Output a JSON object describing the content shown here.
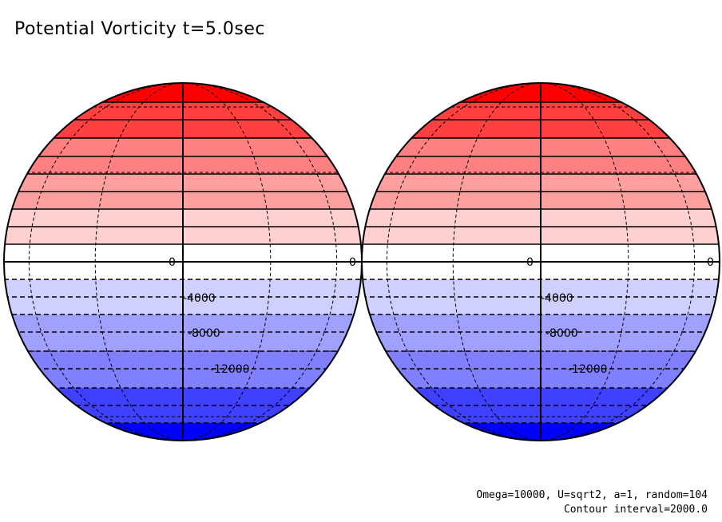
{
  "title": "Potential Vorticity t=5.0sec",
  "chart_data": {
    "type": "contour",
    "projection": "orthographic, two hemispheres side by side",
    "contour_interval": 2000,
    "color_bands": [
      "#ff0000",
      "#ff4040",
      "#ff8080",
      "#ffa0a0",
      "#ffd0d0",
      "#ffffff",
      "#ffffff",
      "#d0d0ff",
      "#a0a0ff",
      "#8080ff",
      "#4040ff",
      "#0000ff"
    ],
    "contour_labels": [
      "0",
      "0",
      "-4000",
      "-8000",
      "-12000"
    ],
    "negative_contours_style": "dashed"
  },
  "footer": {
    "params": "Omega=10000, U=sqrt2, a=1, random=104",
    "interval": "Contour interval=2000.0"
  }
}
